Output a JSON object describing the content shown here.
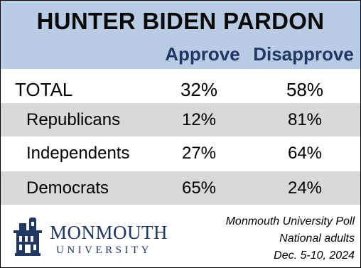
{
  "title": "HUNTER BIDEN PARDON",
  "columns": [
    "Approve",
    "Disapprove"
  ],
  "rows": [
    {
      "label": "TOTAL",
      "approve": "32%",
      "disapprove": "58%"
    },
    {
      "label": "Republicans",
      "approve": "12%",
      "disapprove": "81%"
    },
    {
      "label": "Independents",
      "approve": "27%",
      "disapprove": "64%"
    },
    {
      "label": "Democrats",
      "approve": "65%",
      "disapprove": "24%"
    }
  ],
  "logo": {
    "name": "MONMOUTH",
    "subtitle": "UNIVERSITY"
  },
  "source": {
    "line1": "Monmouth University Poll",
    "line2": "National adults",
    "line3": "Dec. 5-10, 2024"
  },
  "colors": {
    "header_bg": "#b8cce4",
    "shaded_row": "#d9d9d9",
    "column_header_text": "#1f3864",
    "logo": "#1f3864"
  },
  "chart_data": {
    "type": "table",
    "title": "HUNTER BIDEN PARDON",
    "columns": [
      "Approve",
      "Disapprove"
    ],
    "categories": [
      "TOTAL",
      "Republicans",
      "Independents",
      "Democrats"
    ],
    "series": [
      {
        "name": "Approve",
        "values": [
          32,
          12,
          27,
          65
        ]
      },
      {
        "name": "Disapprove",
        "values": [
          58,
          81,
          64,
          24
        ]
      }
    ]
  }
}
